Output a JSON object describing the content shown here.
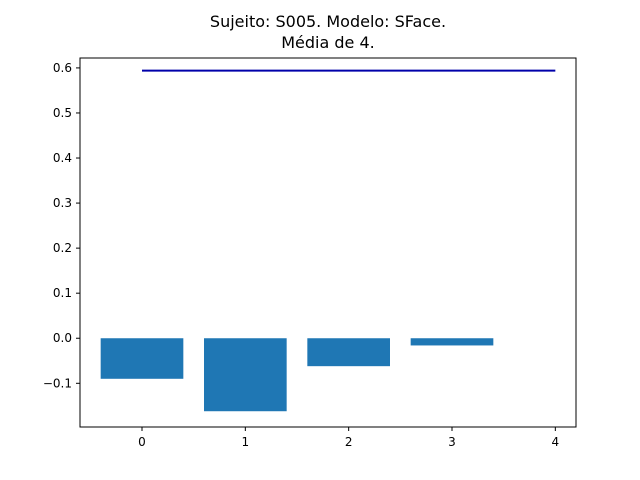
{
  "chart_data": {
    "type": "bar",
    "title_lines": [
      "Sujeito: S005. Modelo: SFace.",
      "Média de 4."
    ],
    "x": [
      0,
      1,
      2,
      3
    ],
    "values": [
      -0.09,
      -0.162,
      -0.062,
      -0.016
    ],
    "xlim": [
      -0.6,
      4.2
    ],
    "ylim": [
      -0.197,
      0.622
    ],
    "xticks": [
      "0",
      "1",
      "2",
      "3",
      "4"
    ],
    "yticks": [
      "−0.1",
      "0.0",
      "0.1",
      "0.2",
      "0.3",
      "0.4",
      "0.5",
      "0.6"
    ],
    "ytick_values": [
      -0.1,
      0.0,
      0.1,
      0.2,
      0.3,
      0.4,
      0.5,
      0.6
    ],
    "bar_width": 0.8,
    "reference_line": {
      "y": 0.594,
      "x_start": 0,
      "x_end": 4,
      "color": "#0000aa"
    },
    "bar_color": "#1f77b4",
    "grid": false,
    "legend": "none"
  }
}
